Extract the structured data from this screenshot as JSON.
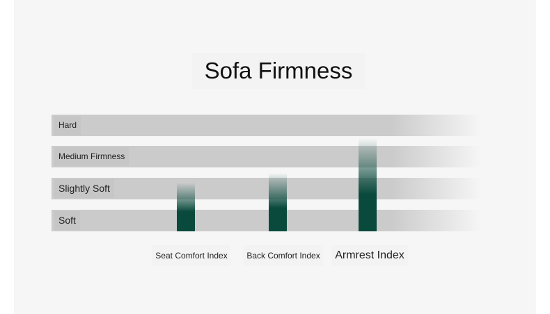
{
  "chart_data": {
    "type": "bar",
    "title": "Sofa Firmness",
    "categories": [
      "Seat Comfort Index",
      "Back Comfort Index",
      "Armrest Index"
    ],
    "values": [
      2.2,
      2.5,
      3.6
    ],
    "levels": [
      "Soft",
      "Slightly Soft",
      "Medium Firmness",
      "Hard"
    ],
    "ylim": [
      1,
      4
    ],
    "bar_color": "#0a4a3d",
    "band_color": "#cbcbcb",
    "grid": false,
    "legend": "none"
  }
}
